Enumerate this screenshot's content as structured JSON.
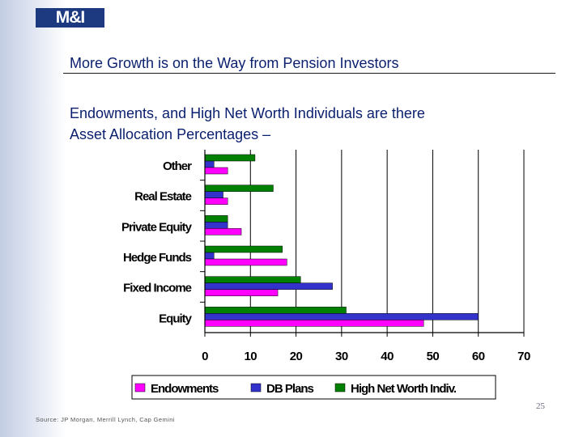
{
  "logo": {
    "text": "M&I"
  },
  "title": "More Growth is on the Way from Pension Investors",
  "subtitle": {
    "line1": "Endowments, and High Net Worth Individuals are there",
    "line2": "Asset Allocation Percentages –"
  },
  "page_number": "25",
  "source": "Source: JP Morgan, Merrill Lynch, Cap Gemini",
  "chart_data": {
    "type": "bar",
    "orientation": "horizontal",
    "categories": [
      "Other",
      "Real Estate",
      "Private Equity",
      "Hedge Funds",
      "Fixed Income",
      "Equity"
    ],
    "series": [
      {
        "name": "Endowments",
        "color": "#ff00ff",
        "values": [
          5,
          5,
          8,
          18,
          16,
          48
        ]
      },
      {
        "name": "DB Plans",
        "color": "#3333cc",
        "values": [
          2,
          4,
          5,
          2,
          28,
          60
        ]
      },
      {
        "name": "High Net Worth Indiv.",
        "color": "#008000",
        "values": [
          11,
          15,
          5,
          17,
          21,
          31
        ]
      }
    ],
    "xlim": [
      0,
      70
    ],
    "xticks": [
      0,
      10,
      20,
      30,
      40,
      50,
      60,
      70
    ],
    "grid": true,
    "legend": "bottom"
  }
}
